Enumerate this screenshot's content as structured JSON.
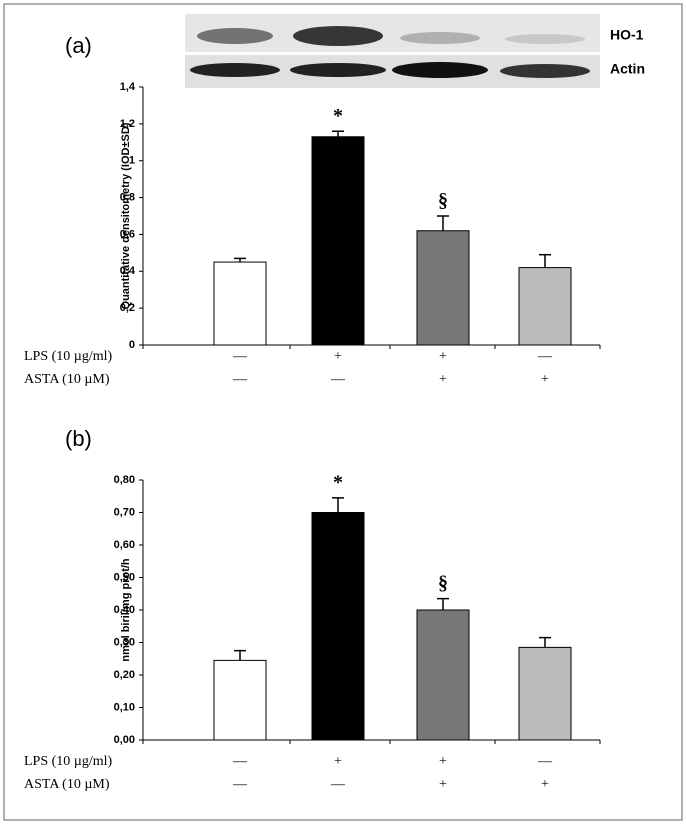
{
  "chart_data": [
    {
      "type": "bar",
      "panel_label": "(a)",
      "ylabel": "Quantitative densitometry (IOD±SD)",
      "blot_labels": [
        "HO-1",
        "Actin"
      ],
      "values": [
        0.45,
        1.13,
        0.62,
        0.42
      ],
      "errors": [
        0.02,
        0.03,
        0.08,
        0.07
      ],
      "colors": [
        "#ffffff",
        "#000000",
        "#777777",
        "#bbbbbb"
      ],
      "annotations": [
        null,
        "*",
        "§",
        null
      ],
      "ylim": [
        0,
        1.4
      ],
      "yticks": [
        0,
        {
          "value": 0.2,
          "label": "0,2"
        },
        {
          "value": 0.4,
          "label": "0,4"
        },
        {
          "value": 0.6,
          "label": "0,6"
        },
        {
          "value": 0.8,
          "label": "0,8"
        },
        1,
        {
          "value": 1.2,
          "label": "1,2"
        },
        {
          "value": 1.4,
          "label": "1,4"
        }
      ],
      "treatments": [
        {
          "name": "LPS (10 µg/ml)",
          "values": [
            "—",
            "+",
            "+",
            "—"
          ]
        },
        {
          "name": "ASTA (10 µM)",
          "values": [
            "—",
            "—",
            "+",
            "+"
          ]
        }
      ]
    },
    {
      "type": "bar",
      "panel_label": "(b)",
      "ylabel": "nmol biril/mg prot/h",
      "values": [
        0.245,
        0.7,
        0.4,
        0.285
      ],
      "errors": [
        0.03,
        0.045,
        0.035,
        0.03
      ],
      "colors": [
        "#ffffff",
        "#000000",
        "#777777",
        "#bbbbbb"
      ],
      "annotations": [
        null,
        "*",
        "§",
        null
      ],
      "ylim": [
        0,
        0.8
      ],
      "yticks": [
        {
          "value": 0,
          "label": "0,00"
        },
        {
          "value": 0.1,
          "label": "0,10"
        },
        {
          "value": 0.2,
          "label": "0,20"
        },
        {
          "value": 0.3,
          "label": "0,30"
        },
        {
          "value": 0.4,
          "label": "0,40"
        },
        {
          "value": 0.5,
          "label": "0,50"
        },
        {
          "value": 0.6,
          "label": "0,60"
        },
        {
          "value": 0.7,
          "label": "0,70"
        },
        {
          "value": 0.8,
          "label": "0,80"
        }
      ],
      "treatments": [
        {
          "name": "LPS (10 µg/ml)",
          "values": [
            "—",
            "+",
            "+",
            "—"
          ]
        },
        {
          "name": "ASTA (10 µM)",
          "values": [
            "—",
            "—",
            "+",
            "+"
          ]
        }
      ]
    }
  ]
}
